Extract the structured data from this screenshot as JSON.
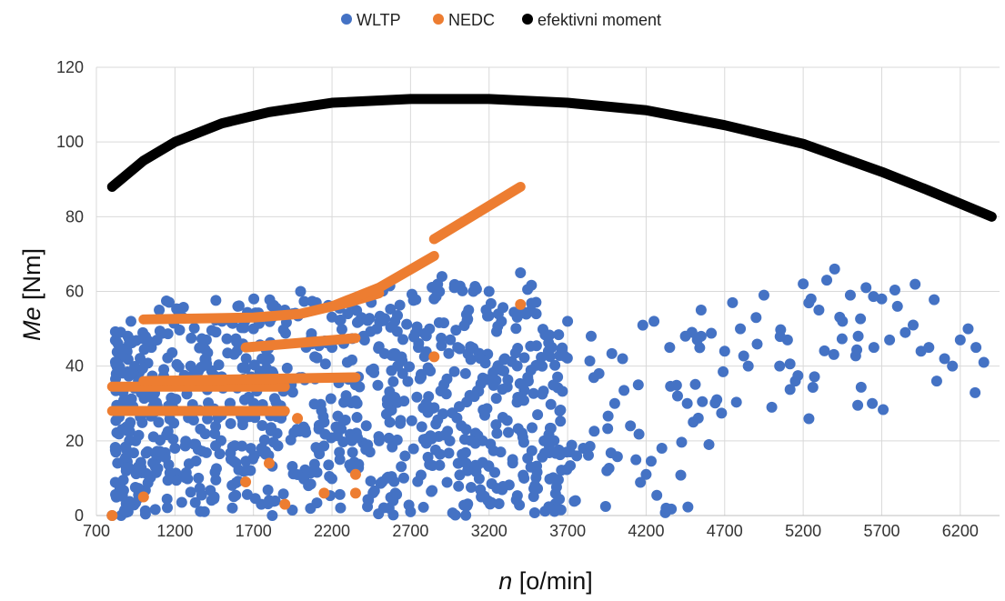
{
  "chart_data": {
    "type": "scatter",
    "legend_position": "top",
    "grid": true,
    "xlabel": {
      "italic": "n",
      "rest": " [o/min]"
    },
    "ylabel": {
      "italic": "Me",
      "rest": " [Nm]"
    },
    "xlim": [
      700,
      6450
    ],
    "ylim": [
      0,
      120
    ],
    "xticks": [
      700,
      1200,
      1700,
      2200,
      2700,
      3200,
      3700,
      4200,
      4700,
      5200,
      5700,
      6200
    ],
    "yticks": [
      0,
      20,
      40,
      60,
      80,
      100,
      120
    ],
    "series": [
      {
        "name": "WLTP",
        "color": "#4472C4",
        "generator": "dense_random_scatter",
        "points": [
          [
            800,
            0
          ],
          [
            850,
            8
          ],
          [
            880,
            15
          ],
          [
            900,
            48
          ],
          [
            920,
            52
          ],
          [
            950,
            20
          ],
          [
            1000,
            35
          ],
          [
            1050,
            45
          ],
          [
            1100,
            55
          ],
          [
            1150,
            28
          ],
          [
            1200,
            18
          ],
          [
            1250,
            53
          ],
          [
            1300,
            40
          ],
          [
            1350,
            10
          ],
          [
            1400,
            47
          ],
          [
            1450,
            5
          ],
          [
            1500,
            52
          ],
          [
            1550,
            30
          ],
          [
            1600,
            56
          ],
          [
            1650,
            12
          ],
          [
            1700,
            50
          ],
          [
            1750,
            3
          ],
          [
            1800,
            42
          ],
          [
            1850,
            22
          ],
          [
            1900,
            55
          ],
          [
            1950,
            33
          ],
          [
            2000,
            60
          ],
          [
            2050,
            8
          ],
          [
            2100,
            57
          ],
          [
            2150,
            25
          ],
          [
            2200,
            45
          ],
          [
            2250,
            15
          ],
          [
            2300,
            54
          ],
          [
            2350,
            35
          ],
          [
            2400,
            48
          ],
          [
            2500,
            20
          ],
          [
            2550,
            10
          ],
          [
            2600,
            52
          ],
          [
            2650,
            38
          ],
          [
            2700,
            1
          ],
          [
            2750,
            45
          ],
          [
            2800,
            30
          ],
          [
            2850,
            58
          ],
          [
            2900,
            64
          ],
          [
            2950,
            20
          ],
          [
            3000,
            45
          ],
          [
            3050,
            38
          ],
          [
            3100,
            60
          ],
          [
            3150,
            5
          ],
          [
            3200,
            60
          ],
          [
            3250,
            22
          ],
          [
            3300,
            42
          ],
          [
            3350,
            15
          ],
          [
            3400,
            65
          ],
          [
            3450,
            36
          ],
          [
            3500,
            54
          ],
          [
            3550,
            20
          ],
          [
            3600,
            45
          ],
          [
            3650,
            28
          ],
          [
            3700,
            52
          ],
          [
            3750,
            4
          ],
          [
            3800,
            18
          ],
          [
            3850,
            48
          ],
          [
            3900,
            38
          ],
          [
            3950,
            12
          ],
          [
            4000,
            30
          ],
          [
            4050,
            42
          ],
          [
            4100,
            24
          ],
          [
            4150,
            35
          ],
          [
            4200,
            11
          ],
          [
            4250,
            52
          ],
          [
            4300,
            18
          ],
          [
            4350,
            45
          ],
          [
            4400,
            32
          ],
          [
            4450,
            48
          ],
          [
            4500,
            25
          ],
          [
            4550,
            55
          ],
          [
            4600,
            19
          ],
          [
            4650,
            31
          ],
          [
            4700,
            44
          ],
          [
            4750,
            57
          ],
          [
            4800,
            50
          ],
          [
            4850,
            40
          ],
          [
            4900,
            53
          ],
          [
            4950,
            59
          ],
          [
            5000,
            29
          ],
          [
            5050,
            40
          ],
          [
            5100,
            47
          ],
          [
            5150,
            36
          ],
          [
            5200,
            62
          ],
          [
            5250,
            58
          ],
          [
            5300,
            55
          ],
          [
            5350,
            63
          ],
          [
            5400,
            66
          ],
          [
            5450,
            52
          ],
          [
            5500,
            59
          ],
          [
            5550,
            48
          ],
          [
            5600,
            61
          ],
          [
            5650,
            45
          ],
          [
            5700,
            58
          ],
          [
            5750,
            47
          ],
          [
            5800,
            56
          ],
          [
            5850,
            49
          ],
          [
            5900,
            51
          ],
          [
            5950,
            44
          ],
          [
            6000,
            45
          ],
          [
            6050,
            36
          ],
          [
            6100,
            42
          ],
          [
            6150,
            40
          ],
          [
            6200,
            47
          ],
          [
            6250,
            50
          ],
          [
            6300,
            45
          ],
          [
            6350,
            41
          ]
        ]
      },
      {
        "name": "NEDC",
        "color": "#ED7D31",
        "generator": "line_segments",
        "segments": [
          [
            [
              800,
              28
            ],
            [
              1900,
              28
            ]
          ],
          [
            [
              800,
              34.5
            ],
            [
              1900,
              34.5
            ]
          ],
          [
            [
              1000,
              36
            ],
            [
              2350,
              37
            ]
          ],
          [
            [
              1650,
              45
            ],
            [
              2350,
              47.5
            ]
          ],
          [
            [
              1000,
              52.5
            ],
            [
              1700,
              53
            ],
            [
              2000,
              54
            ],
            [
              2300,
              57
            ],
            [
              2500,
              59.5
            ]
          ],
          [
            [
              2200,
              56
            ],
            [
              2500,
              61
            ],
            [
              2850,
              69.5
            ]
          ],
          [
            [
              2850,
              74
            ],
            [
              3400,
              88
            ]
          ]
        ],
        "points": [
          [
            800,
            0
          ],
          [
            1000,
            5
          ],
          [
            1650,
            9
          ],
          [
            1800,
            14
          ],
          [
            1900,
            3
          ],
          [
            1980,
            26
          ],
          [
            2150,
            6
          ],
          [
            2350,
            6
          ],
          [
            2350,
            11
          ],
          [
            2850,
            42.5
          ],
          [
            3400,
            56.5
          ]
        ]
      },
      {
        "name": "efektivni moment",
        "color": "#000000",
        "generator": "curve",
        "x": [
          800,
          1000,
          1200,
          1500,
          1800,
          2200,
          2700,
          3200,
          3700,
          4200,
          4700,
          5200,
          5700,
          6000,
          6200,
          6400
        ],
        "y": [
          88,
          95,
          100,
          105,
          108,
          110.5,
          111.5,
          111.5,
          110.5,
          108.5,
          104.5,
          99.5,
          92,
          87,
          83.5,
          80
        ]
      }
    ]
  }
}
